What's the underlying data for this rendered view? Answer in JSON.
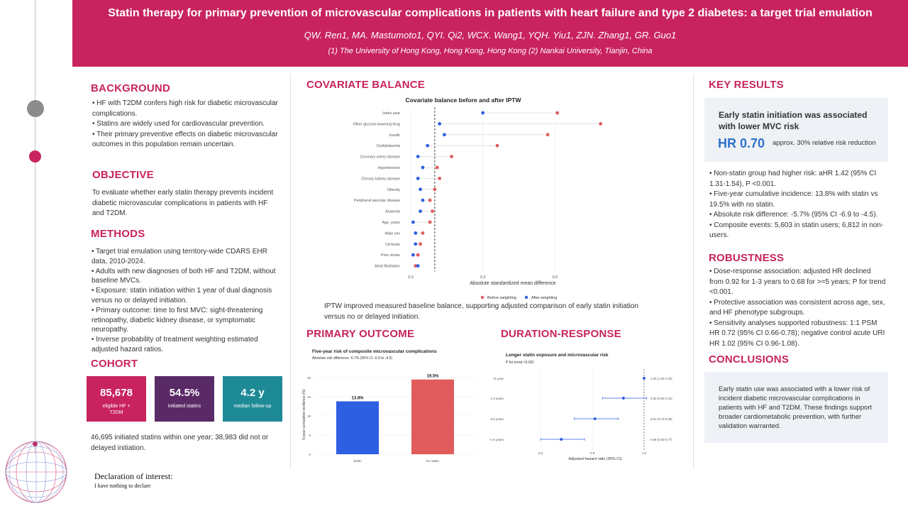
{
  "header": {
    "title": "Statin therapy for primary prevention of microvascular complications in patients with heart failure and type 2 diabetes: a target trial emulation",
    "authors": "QW. Ren1, MA. Mastumoto1, QYI. Qi2, WCX. Wang1, YQH. Yiu1, ZJN. Zhang1, GR. Guo1",
    "affiliations": "(1) The University of Hong Kong, Hong Kong, Hong Kong   (2) Nankai University, Tianjin, China"
  },
  "colors": {
    "accent": "#c8235e",
    "blue": "#2e5fe0",
    "red": "#e05b5b",
    "navy": "#5a2a66",
    "teal": "#1e8a96"
  },
  "background": {
    "heading": "BACKGROUND",
    "items": [
      "• HF with T2DM confers high risk for diabetic microvascular complications.",
      "• Statins are widely used for cardiovascular prevention.",
      "• Their primary preventive effects on diabetic microvascular outcomes in this population remain uncertain."
    ]
  },
  "objective": {
    "heading": "OBJECTIVE",
    "text": "To evaluate whether early statin therapy prevents incident diabetic microvascular complications in patients with HF and T2DM."
  },
  "methods": {
    "heading": "METHODS",
    "items": [
      "• Target trial emulation using territory-wide CDARS EHR data, 2010-2024.",
      "• Adults with new diagnoses of both HF and T2DM, without baseline MVCs.",
      "• Exposure: statin initiation within 1 year of dual diagnosis versus no or delayed initiation.",
      "• Primary outcome: time to first MVC: sight-threatening retinopathy, diabetic kidney disease, or symptomatic neuropathy.",
      "• Inverse probability of treatment weighting estimated adjusted hazard ratios."
    ]
  },
  "cohort": {
    "heading": "COHORT",
    "boxes": [
      {
        "value": "85,678",
        "label": "eligible HF + T2DM",
        "color": "#c8235e"
      },
      {
        "value": "54.5%",
        "label": "initiated statins",
        "color": "#5a2a66"
      },
      {
        "value": "4.2 y",
        "label": "median follow-up",
        "color": "#1e8a96"
      }
    ],
    "note": "46,695 initiated statins within one year; 38,983 did not or delayed initiation."
  },
  "declaration": {
    "title": "Declaration of interest:",
    "text": "I have nothing to declare"
  },
  "covariate": {
    "heading": "COVARIATE BALANCE",
    "caption": "IPTW improved measured baseline balance, supporting adjusted comparison of early statin initiation versus no or delayed initiation."
  },
  "primary": {
    "heading": "PRIMARY OUTCOME"
  },
  "duration": {
    "heading": "DURATION-RESPONSE"
  },
  "key_results": {
    "heading": "KEY RESULTS",
    "box_heading": "Early statin initiation was associated with lower MVC risk",
    "hr": "HR 0.70",
    "relative": "approx. 30% relative risk reduction",
    "items": [
      "• Non-statin group had higher risk: aHR 1.42 (95% CI 1.31-1.54), P <0.001.",
      "• Five-year cumulative incidence: 13.8% with statin vs 19.5% with no statin.",
      "• Absolute risk difference: -5.7% (95% CI -6.9 to -4.5).",
      "• Composite events: 5,603 in statin users; 6,812 in non-users."
    ]
  },
  "robustness": {
    "heading": "ROBUSTNESS",
    "items": [
      "• Dose-response association: adjusted HR declined from 0.92 for 1-3 years to 0.68 for >=5 years; P for trend <0.001.",
      "• Protective association was consistent across age, sex, and HF phenotype subgroups.",
      "• Sensitivity analyses supported robustness: 1:1 PSM HR 0.72 (95% CI 0.66-0.78); negative control acute URI HR 1.02 (95% CI 0.96-1.08)."
    ]
  },
  "conclusions": {
    "heading": "CONCLUSIONS",
    "text": "Early statin use was associated with a lower risk of incident diabetic microvascular complications in patients with HF and T2DM. These findings support broader cardiometabolic prevention, with further validation warranted."
  },
  "chart_data": [
    {
      "type": "scatter",
      "title": "Covariate balance before and after IPTW",
      "xlabel": "Absolute standardized mean difference",
      "xlim": [
        0,
        0.85
      ],
      "xticks": [
        "0.0",
        "0.3",
        "0.6",
        "0.9"
      ],
      "threshold": 0.1,
      "categories": [
        "Index year",
        "Other glucose-lowering drug",
        "Insulin",
        "Dyslipidaemia",
        "Coronary artery disease",
        "Hypertension",
        "Chronic kidney disease",
        "Obesity",
        "Peripheral vascular disease",
        "Anaemia",
        "Age, years",
        "Male sex",
        "Cirrhosis",
        "Prior stroke",
        "Atrial fibrillation"
      ],
      "series": [
        {
          "name": "Before weighting",
          "color": "#e05b5b",
          "values": [
            0.61,
            0.79,
            0.57,
            0.36,
            0.17,
            0.11,
            0.12,
            0.1,
            0.08,
            0.09,
            0.08,
            0.05,
            0.04,
            0.03,
            0.02
          ]
        },
        {
          "name": "After weighting",
          "color": "#2e5fe0",
          "values": [
            0.3,
            0.12,
            0.14,
            0.07,
            0.03,
            0.05,
            0.03,
            0.04,
            0.05,
            0.04,
            0.01,
            0.02,
            0.02,
            0.01,
            0.03
          ]
        }
      ],
      "legend": "bottom"
    },
    {
      "type": "bar",
      "title": "Five-year risk of composite microvascular complications",
      "subtitle": "Absolute risk difference -5.7% (95% CI -6.9 to -4.5)",
      "ylabel": "5-year cumulative incidence (%)",
      "ylim": [
        0,
        20
      ],
      "yticks": [
        "0",
        "5",
        "10",
        "15",
        "20"
      ],
      "categories": [
        "Statin",
        "No statin"
      ],
      "values": [
        13.8,
        19.5
      ],
      "value_labels": [
        "13.8%",
        "19.5%"
      ],
      "colors": [
        "#2e5fe0",
        "#e05b5b"
      ]
    },
    {
      "type": "scatter",
      "title": "Longer statin exposure and microvascular risk",
      "subtitle": "P for trend <0.001",
      "xlabel": "Adjusted hazard ratio (95% CI)",
      "xlim": [
        0.6,
        1.0
      ],
      "xticks": [
        "0.6",
        "0.8",
        "1.0"
      ],
      "reference": 1.0,
      "categories": [
        "<1 year",
        "1-3 years",
        "3-5 years",
        ">=5 years"
      ],
      "estimates": [
        1.0,
        0.92,
        0.81,
        0.68
      ],
      "lower": [
        1.0,
        0.84,
        0.73,
        0.6
      ],
      "upper": [
        1.0,
        1.01,
        0.9,
        0.77
      ],
      "labels": [
        "1.00 (1.00-1.00)",
        "0.92 (0.84-1.01)",
        "0.81 (0.73-0.90)",
        "0.68 (0.60-0.77)"
      ],
      "color": "#2e5fe0"
    }
  ]
}
